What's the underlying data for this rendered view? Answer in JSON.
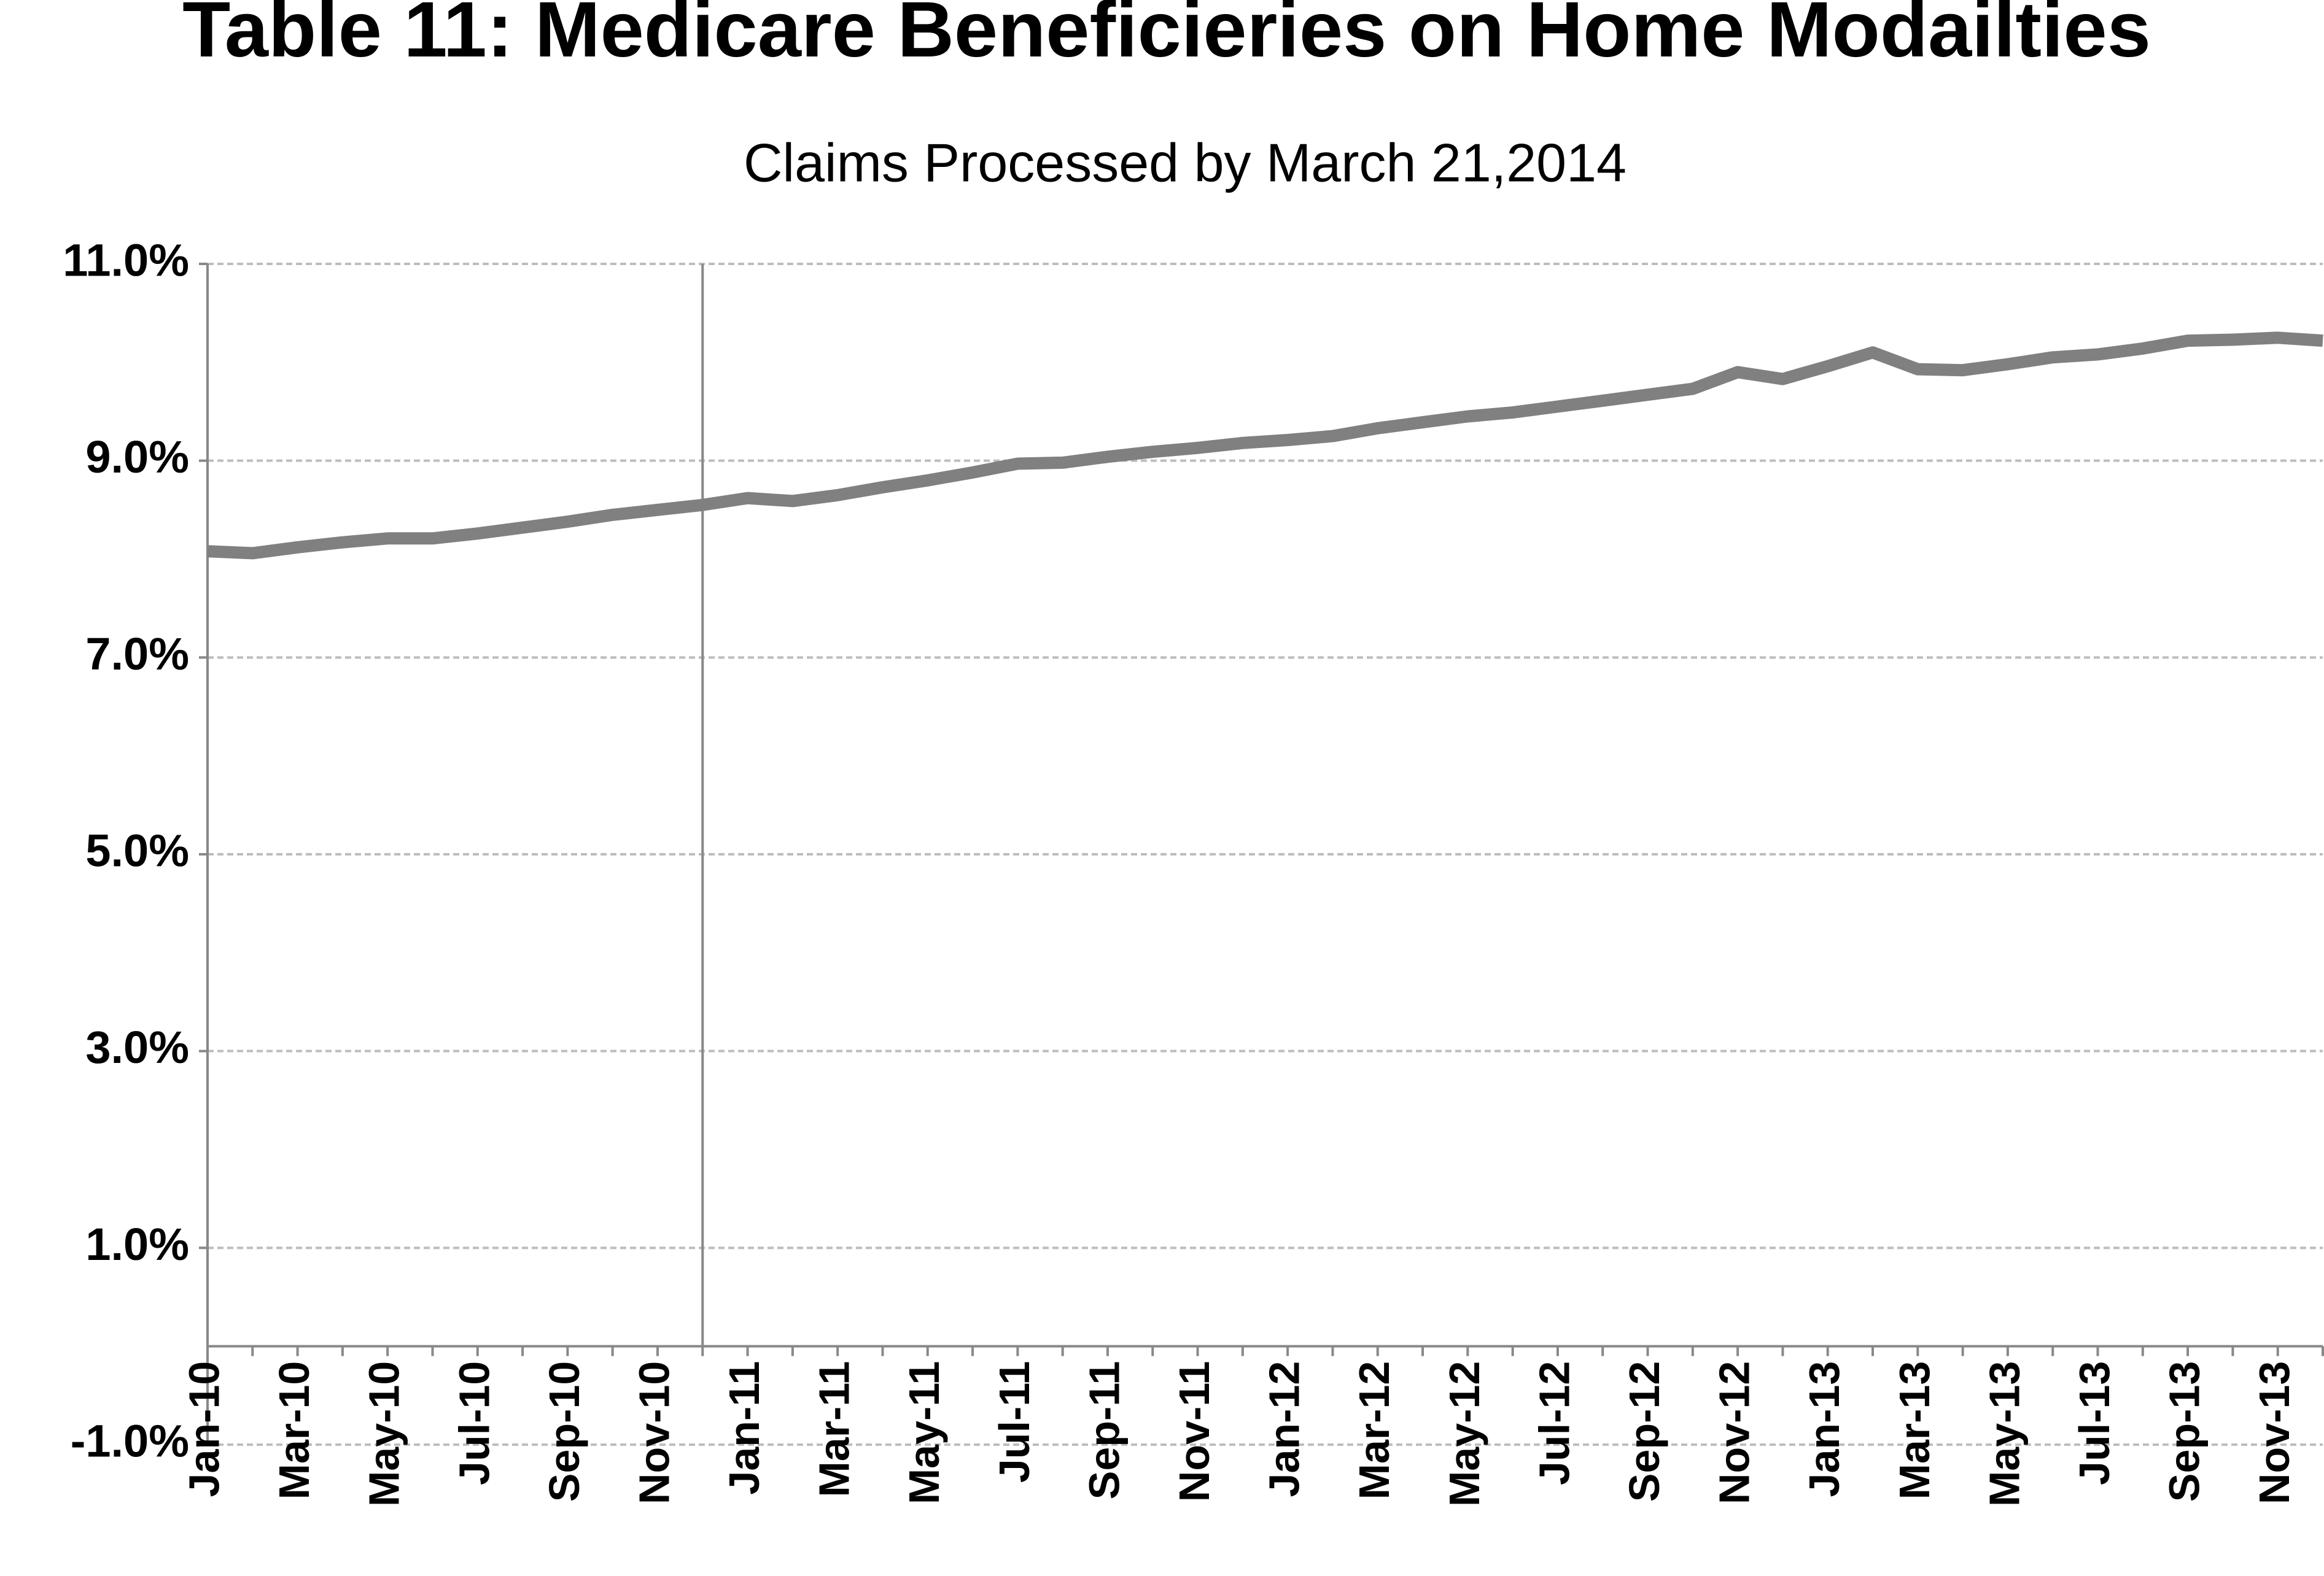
{
  "chart_data": {
    "type": "line",
    "title": "Table 11: Medicare Beneficieries on Home Modailties",
    "subtitle": "Claims Processed by March 21,2014",
    "categories": [
      "Jan-10",
      null,
      "Mar-10",
      null,
      "May-10",
      null,
      "Jul-10",
      null,
      "Sep-10",
      null,
      "Nov-10",
      null,
      "Jan-11",
      null,
      "Mar-11",
      null,
      "May-11",
      null,
      "Jul-11",
      null,
      "Sep-11",
      null,
      "Nov-11",
      null,
      "Jan-12",
      null,
      "Mar-12",
      null,
      "May-12",
      null,
      "Jul-12",
      null,
      "Sep-12",
      null,
      "Nov-12",
      null,
      "Jan-13",
      null,
      "Mar-13",
      null,
      "May-13",
      null,
      "Jul-13",
      null,
      "Sep-13",
      null,
      "Nov-13",
      null
    ],
    "series": [
      {
        "color": "#808080",
        "values": [
          8.08,
          8.06,
          8.12,
          8.17,
          8.21,
          8.21,
          8.26,
          8.32,
          8.38,
          8.45,
          8.5,
          8.55,
          8.62,
          8.59,
          8.65,
          8.73,
          8.8,
          8.88,
          8.97,
          8.98,
          9.04,
          9.09,
          9.13,
          9.18,
          9.21,
          9.25,
          9.33,
          9.39,
          9.45,
          9.49,
          9.55,
          9.61,
          9.67,
          9.73,
          9.9,
          9.83,
          9.96,
          10.1,
          9.93,
          9.92,
          9.98,
          10.05,
          10.08,
          10.14,
          10.22,
          10.23,
          10.25,
          10.22
        ]
      }
    ],
    "ylim": [
      -1,
      11
    ],
    "yticks": [
      {
        "value": -1,
        "label": "-1.0%"
      },
      {
        "value": 1,
        "label": "1.0%"
      },
      {
        "value": 3,
        "label": "3.0%"
      },
      {
        "value": 5,
        "label": "5.0%"
      },
      {
        "value": 7,
        "label": "7.0%"
      },
      {
        "value": 9,
        "label": "9.0%"
      },
      {
        "value": 11,
        "label": "11.0%"
      }
    ],
    "grid": true
  }
}
